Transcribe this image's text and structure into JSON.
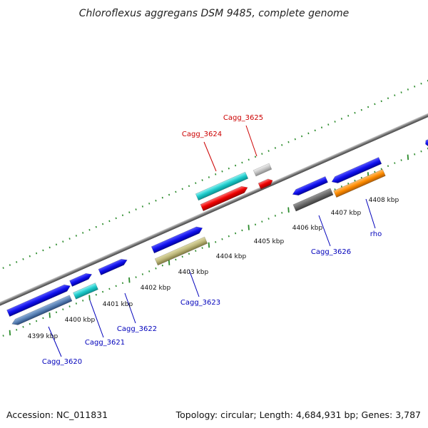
{
  "title": "Chloroflexus aggregans DSM 9485, complete genome",
  "footer": {
    "accession": "Accession: NC_011831",
    "summary": "Topology: circular; Length: 4,684,931 bp; Genes: 3,787"
  },
  "colors": {
    "highlight_label": "#cc0000",
    "normal_label": "#0000bb",
    "backbone": "#8a8a8a",
    "scale_dots": "#2a8a2a"
  },
  "tick_labels": [
    "4399 kbp",
    "4400 kbp",
    "4401 kbp",
    "4402 kbp",
    "4403 kbp",
    "4404 kbp",
    "4405 kbp",
    "4406 kbp",
    "4407 kbp",
    "4408 kbp"
  ],
  "gene_labels": [
    {
      "name": "Cagg_3620",
      "highlight": false
    },
    {
      "name": "Cagg_3621",
      "highlight": false
    },
    {
      "name": "Cagg_3622",
      "highlight": false
    },
    {
      "name": "Cagg_3623",
      "highlight": false
    },
    {
      "name": "Cagg_3624",
      "highlight": true
    },
    {
      "name": "Cagg_3625",
      "highlight": true
    },
    {
      "name": "Cagg_3626",
      "highlight": false
    },
    {
      "name": "rho",
      "highlight": false
    }
  ]
}
